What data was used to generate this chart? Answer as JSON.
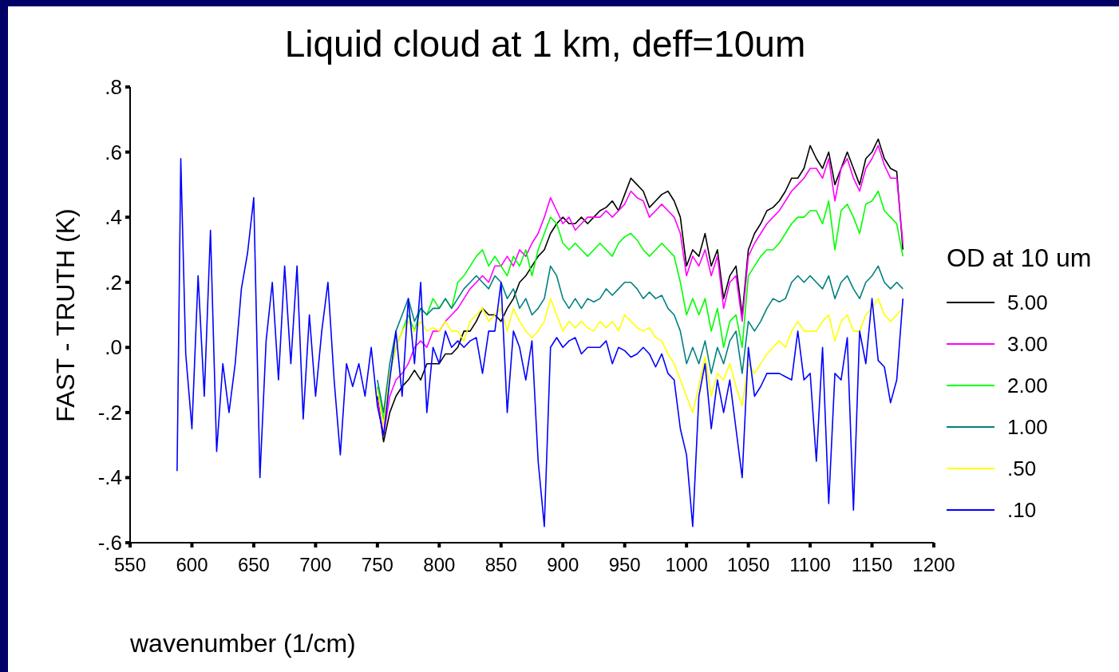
{
  "chart_data": {
    "type": "line",
    "title": "Liquid cloud at 1 km, deff=10um",
    "xlabel": "wavenumber (1/cm)",
    "ylabel": "FAST - TRUTH (K)",
    "legend_title": "OD at 10 um",
    "legend": "right",
    "marker": "none",
    "xlim": [
      550,
      1200
    ],
    "xticks": [
      550,
      600,
      650,
      700,
      750,
      800,
      850,
      900,
      950,
      1000,
      1050,
      1100,
      1150,
      1200
    ],
    "ylim": [
      -0.6,
      0.8
    ],
    "yticks": [
      {
        "value": -0.6,
        "label": "-.6"
      },
      {
        "value": -0.4,
        "label": "-.4"
      },
      {
        "value": -0.2,
        "label": "-.2"
      },
      {
        "value": 0,
        "label": ".0"
      },
      {
        "value": 0.2,
        "label": ".2"
      },
      {
        "value": 0.4,
        "label": ".4"
      },
      {
        "value": 0.6,
        "label": ".6"
      },
      {
        "value": 0.8,
        "label": ".8"
      }
    ],
    "x": [
      588,
      591,
      595,
      600,
      605,
      610,
      615,
      620,
      625,
      630,
      635,
      640,
      645,
      650,
      655,
      660,
      665,
      670,
      675,
      680,
      685,
      690,
      695,
      700,
      705,
      710,
      715,
      720,
      725,
      730,
      735,
      740,
      745,
      750,
      755,
      760,
      765,
      770,
      775,
      780,
      785,
      790,
      795,
      800,
      805,
      810,
      815,
      820,
      825,
      830,
      835,
      840,
      845,
      850,
      855,
      860,
      865,
      870,
      875,
      880,
      885,
      890,
      895,
      900,
      905,
      910,
      915,
      920,
      925,
      930,
      935,
      940,
      945,
      950,
      955,
      960,
      965,
      970,
      975,
      980,
      985,
      990,
      995,
      1000,
      1005,
      1010,
      1015,
      1020,
      1025,
      1030,
      1035,
      1040,
      1045,
      1050,
      1055,
      1060,
      1065,
      1070,
      1075,
      1080,
      1085,
      1090,
      1095,
      1100,
      1105,
      1110,
      1115,
      1120,
      1125,
      1130,
      1135,
      1140,
      1145,
      1150,
      1155,
      1160,
      1165,
      1170,
      1175
    ],
    "series": [
      {
        "name": "5.00",
        "color": "#000000",
        "values": [
          null,
          null,
          null,
          null,
          null,
          null,
          null,
          null,
          null,
          null,
          null,
          null,
          null,
          null,
          null,
          null,
          null,
          null,
          null,
          null,
          null,
          null,
          null,
          null,
          null,
          null,
          null,
          null,
          null,
          null,
          null,
          null,
          null,
          -0.15,
          -0.29,
          -0.2,
          -0.15,
          -0.12,
          -0.1,
          -0.07,
          -0.1,
          -0.05,
          -0.05,
          -0.05,
          -0.02,
          -0.02,
          0.0,
          0.05,
          0.05,
          0.08,
          0.12,
          0.1,
          0.1,
          0.08,
          0.12,
          0.15,
          0.2,
          0.22,
          0.25,
          0.28,
          0.3,
          0.35,
          0.38,
          0.4,
          0.38,
          0.38,
          0.4,
          0.38,
          0.4,
          0.42,
          0.43,
          0.45,
          0.42,
          0.47,
          0.52,
          0.5,
          0.48,
          0.43,
          0.45,
          0.47,
          0.48,
          0.45,
          0.4,
          0.25,
          0.3,
          0.28,
          0.35,
          0.25,
          0.3,
          0.15,
          0.22,
          0.25,
          0.1,
          0.3,
          0.35,
          0.38,
          0.42,
          0.43,
          0.45,
          0.48,
          0.52,
          0.52,
          0.55,
          0.62,
          0.58,
          0.55,
          0.6,
          0.5,
          0.55,
          0.6,
          0.55,
          0.5,
          0.58,
          0.6,
          0.64,
          0.58,
          0.55,
          0.54,
          0.3
        ]
      },
      {
        "name": "3.00",
        "color": "#ff00ff",
        "values": [
          null,
          null,
          null,
          null,
          null,
          null,
          null,
          null,
          null,
          null,
          null,
          null,
          null,
          null,
          null,
          null,
          null,
          null,
          null,
          null,
          null,
          null,
          null,
          null,
          null,
          null,
          null,
          null,
          null,
          null,
          null,
          null,
          null,
          -0.16,
          -0.27,
          -0.15,
          -0.1,
          -0.08,
          -0.05,
          0.0,
          0.02,
          0.0,
          0.05,
          0.05,
          0.08,
          0.1,
          0.12,
          0.15,
          0.18,
          0.2,
          0.22,
          0.2,
          0.25,
          0.25,
          0.28,
          0.25,
          0.3,
          0.28,
          0.32,
          0.35,
          0.4,
          0.46,
          0.42,
          0.38,
          0.4,
          0.36,
          0.38,
          0.4,
          0.4,
          0.4,
          0.42,
          0.4,
          0.42,
          0.44,
          0.48,
          0.46,
          0.45,
          0.4,
          0.42,
          0.44,
          0.42,
          0.4,
          0.35,
          0.22,
          0.28,
          0.25,
          0.3,
          0.22,
          0.28,
          0.12,
          0.2,
          0.22,
          0.08,
          0.28,
          0.32,
          0.35,
          0.38,
          0.4,
          0.42,
          0.45,
          0.48,
          0.5,
          0.52,
          0.55,
          0.55,
          0.52,
          0.58,
          0.45,
          0.55,
          0.58,
          0.52,
          0.48,
          0.55,
          0.58,
          0.62,
          0.56,
          0.52,
          0.52,
          0.32
        ]
      },
      {
        "name": "2.00",
        "color": "#00ff00",
        "values": [
          null,
          null,
          null,
          null,
          null,
          null,
          null,
          null,
          null,
          null,
          null,
          null,
          null,
          null,
          null,
          null,
          null,
          null,
          null,
          null,
          null,
          null,
          null,
          null,
          null,
          null,
          null,
          null,
          null,
          null,
          null,
          null,
          null,
          -0.12,
          -0.22,
          -0.08,
          0.0,
          0.05,
          0.1,
          0.05,
          0.12,
          0.1,
          0.15,
          0.12,
          0.15,
          0.12,
          0.2,
          0.22,
          0.25,
          0.28,
          0.3,
          0.25,
          0.28,
          0.25,
          0.22,
          0.28,
          0.25,
          0.3,
          0.22,
          0.3,
          0.35,
          0.4,
          0.38,
          0.32,
          0.3,
          0.32,
          0.3,
          0.28,
          0.3,
          0.32,
          0.3,
          0.28,
          0.32,
          0.34,
          0.35,
          0.33,
          0.3,
          0.28,
          0.3,
          0.32,
          0.3,
          0.28,
          0.2,
          0.1,
          0.15,
          0.1,
          0.15,
          0.05,
          0.12,
          0.0,
          0.08,
          0.1,
          0.0,
          0.22,
          0.25,
          0.28,
          0.3,
          0.3,
          0.32,
          0.35,
          0.38,
          0.4,
          0.4,
          0.42,
          0.42,
          0.38,
          0.45,
          0.3,
          0.42,
          0.44,
          0.4,
          0.35,
          0.44,
          0.45,
          0.48,
          0.42,
          0.4,
          0.38,
          0.28
        ]
      },
      {
        "name": "1.00",
        "color": "#008080",
        "values": [
          null,
          null,
          null,
          null,
          null,
          null,
          null,
          null,
          null,
          null,
          null,
          null,
          null,
          null,
          null,
          null,
          null,
          null,
          null,
          null,
          null,
          null,
          null,
          null,
          null,
          null,
          null,
          null,
          null,
          null,
          null,
          null,
          null,
          -0.1,
          -0.2,
          -0.05,
          0.05,
          0.1,
          0.15,
          0.08,
          0.12,
          0.1,
          0.12,
          0.12,
          0.15,
          0.12,
          0.15,
          0.18,
          0.2,
          0.22,
          0.2,
          0.18,
          0.22,
          0.2,
          0.15,
          0.18,
          0.12,
          0.15,
          0.1,
          0.12,
          0.15,
          0.25,
          0.22,
          0.15,
          0.12,
          0.15,
          0.12,
          0.15,
          0.14,
          0.15,
          0.18,
          0.16,
          0.18,
          0.2,
          0.2,
          0.18,
          0.15,
          0.17,
          0.15,
          0.16,
          0.12,
          0.1,
          0.05,
          -0.05,
          0.0,
          -0.05,
          0.02,
          -0.08,
          0.0,
          -0.05,
          0.02,
          0.05,
          -0.08,
          0.08,
          0.05,
          0.08,
          0.12,
          0.15,
          0.14,
          0.15,
          0.2,
          0.22,
          0.2,
          0.22,
          0.2,
          0.18,
          0.22,
          0.15,
          0.2,
          0.22,
          0.18,
          0.15,
          0.2,
          0.22,
          0.25,
          0.2,
          0.18,
          0.2,
          0.18
        ]
      },
      {
        "name": ".50",
        "color": "#ffff00",
        "values": [
          null,
          null,
          null,
          null,
          null,
          null,
          null,
          null,
          null,
          null,
          null,
          null,
          null,
          null,
          null,
          null,
          null,
          null,
          null,
          null,
          null,
          null,
          null,
          null,
          null,
          null,
          null,
          null,
          null,
          null,
          null,
          null,
          null,
          -0.13,
          -0.24,
          -0.08,
          0.0,
          0.05,
          0.08,
          0.05,
          0.08,
          0.05,
          0.06,
          0.05,
          0.08,
          0.05,
          0.05,
          0.02,
          0.08,
          0.1,
          0.12,
          0.08,
          0.1,
          0.12,
          0.05,
          0.12,
          0.08,
          0.05,
          0.03,
          0.05,
          0.08,
          0.15,
          0.1,
          0.05,
          0.08,
          0.06,
          0.08,
          0.06,
          0.05,
          0.08,
          0.06,
          0.08,
          0.05,
          0.1,
          0.08,
          0.06,
          0.05,
          0.06,
          0.03,
          0.02,
          -0.02,
          -0.05,
          -0.1,
          -0.15,
          -0.2,
          -0.12,
          -0.03,
          -0.15,
          -0.08,
          -0.1,
          -0.05,
          -0.12,
          -0.18,
          -0.05,
          -0.08,
          -0.05,
          -0.02,
          0.0,
          0.02,
          0.0,
          0.05,
          0.08,
          0.05,
          0.05,
          0.05,
          0.08,
          0.1,
          0.02,
          0.08,
          0.1,
          0.05,
          0.05,
          0.1,
          0.12,
          0.15,
          0.1,
          0.08,
          0.1,
          0.12
        ]
      },
      {
        "name": ".10",
        "color": "#0000ff",
        "values": [
          -0.38,
          0.58,
          -0.02,
          -0.25,
          0.22,
          -0.15,
          0.36,
          -0.32,
          -0.05,
          -0.2,
          -0.05,
          0.18,
          0.29,
          0.46,
          -0.4,
          0.02,
          0.2,
          -0.1,
          0.25,
          -0.05,
          0.25,
          -0.22,
          0.1,
          -0.15,
          0.05,
          0.2,
          -0.1,
          -0.33,
          -0.05,
          -0.12,
          -0.05,
          -0.15,
          0.0,
          -0.18,
          -0.27,
          -0.1,
          0.05,
          -0.15,
          0.15,
          -0.05,
          0.2,
          -0.2,
          0.0,
          -0.05,
          0.05,
          0.0,
          0.02,
          0.0,
          0.02,
          0.03,
          -0.08,
          0.05,
          0.05,
          0.2,
          -0.2,
          0.05,
          0.0,
          -0.1,
          0.02,
          -0.35,
          -0.55,
          0.0,
          0.03,
          0.0,
          0.02,
          0.03,
          -0.02,
          0.0,
          0.0,
          0.0,
          0.02,
          -0.05,
          0.0,
          -0.01,
          -0.03,
          -0.02,
          0.0,
          -0.02,
          -0.06,
          -0.02,
          -0.08,
          -0.1,
          -0.25,
          -0.33,
          -0.55,
          -0.15,
          -0.05,
          -0.25,
          -0.1,
          -0.2,
          -0.1,
          -0.25,
          -0.4,
          0.0,
          -0.15,
          -0.12,
          -0.08,
          -0.08,
          -0.08,
          -0.09,
          -0.1,
          0.05,
          -0.1,
          -0.08,
          -0.35,
          0.0,
          -0.48,
          -0.08,
          -0.1,
          0.03,
          -0.5,
          0.05,
          -0.05,
          0.15,
          -0.04,
          -0.06,
          -0.17,
          -0.1,
          0.15
        ]
      }
    ]
  }
}
